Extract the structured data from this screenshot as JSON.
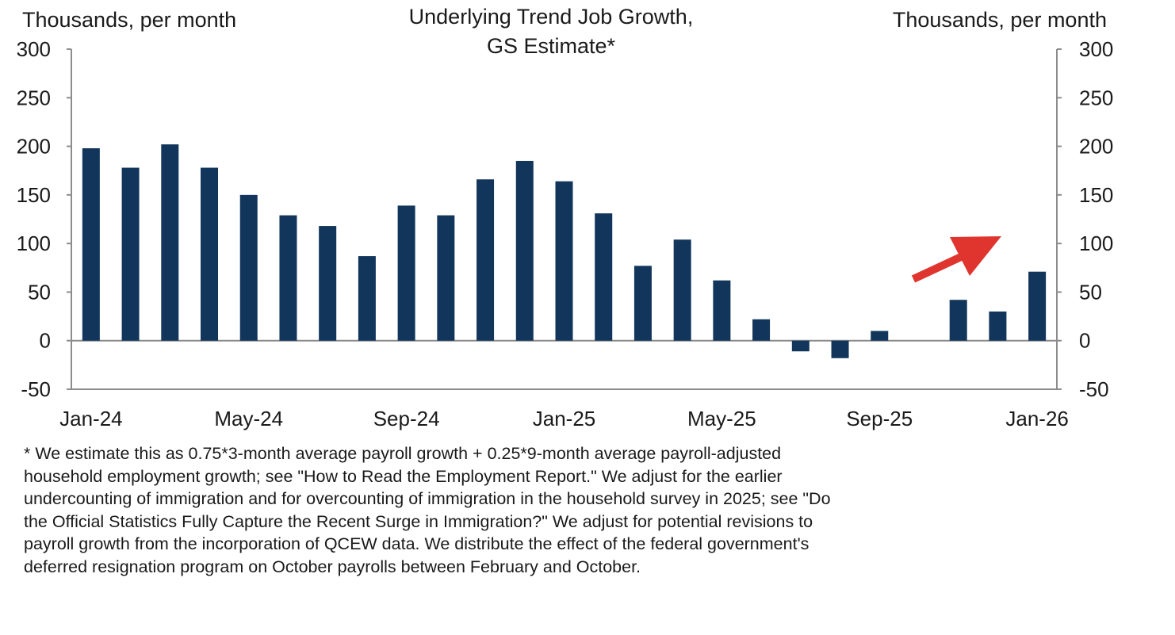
{
  "chart_data": {
    "type": "bar",
    "title": "Underlying Trend Job Growth,",
    "subtitle": "GS Estimate*",
    "ylabel_left": "Thousands,  per month",
    "ylabel_right": "Thousands,  per month",
    "ylim": [
      -50,
      300
    ],
    "yticks": [
      300,
      250,
      200,
      150,
      100,
      50,
      0,
      -50
    ],
    "xtick_labels": [
      "Jan-24",
      "May-24",
      "Sep-24",
      "Jan-25",
      "May-25",
      "Sep-25",
      "Jan-26"
    ],
    "categories": [
      "Jan-24",
      "Feb-24",
      "Mar-24",
      "Apr-24",
      "May-24",
      "Jun-24",
      "Jul-24",
      "Aug-24",
      "Sep-24",
      "Oct-24",
      "Nov-24",
      "Dec-24",
      "Jan-25",
      "Feb-25",
      "Mar-25",
      "Apr-25",
      "May-25",
      "Jun-25",
      "Jul-25",
      "Aug-25",
      "Sep-25",
      "Oct-25",
      "Nov-25",
      "Dec-25",
      "Jan-26"
    ],
    "values": [
      198,
      178,
      202,
      178,
      150,
      129,
      118,
      87,
      139,
      129,
      166,
      185,
      164,
      131,
      77,
      104,
      62,
      22,
      -11,
      -18,
      10,
      null,
      42,
      30,
      71
    ],
    "grid": false,
    "colors": {
      "bar": "#12355b",
      "arrow": "#e0352f",
      "axis": "#8c8c8c"
    },
    "annotation": "red-upward-arrow"
  },
  "footnote": [
    "* We estimate  this as 0.75*3-month  average payroll growth + 0.25*9-month  average payroll-adjusted",
    "household  employment  growth; see \"How to Read the Employment   Report.\"  We adjust for the earlier",
    "undercounting of immigration  and for overcounting of immigration  in the household survey in 2025; see \"Do",
    "the Official Statistics Fully Capture the Recent Surge in Immigration?\"   We adjust for potential  revisions to",
    "payroll growth from the incorporation of QCEW  data. We distribute the effect of the federal government's",
    "deferred resignation program on October payrolls between February and October."
  ]
}
